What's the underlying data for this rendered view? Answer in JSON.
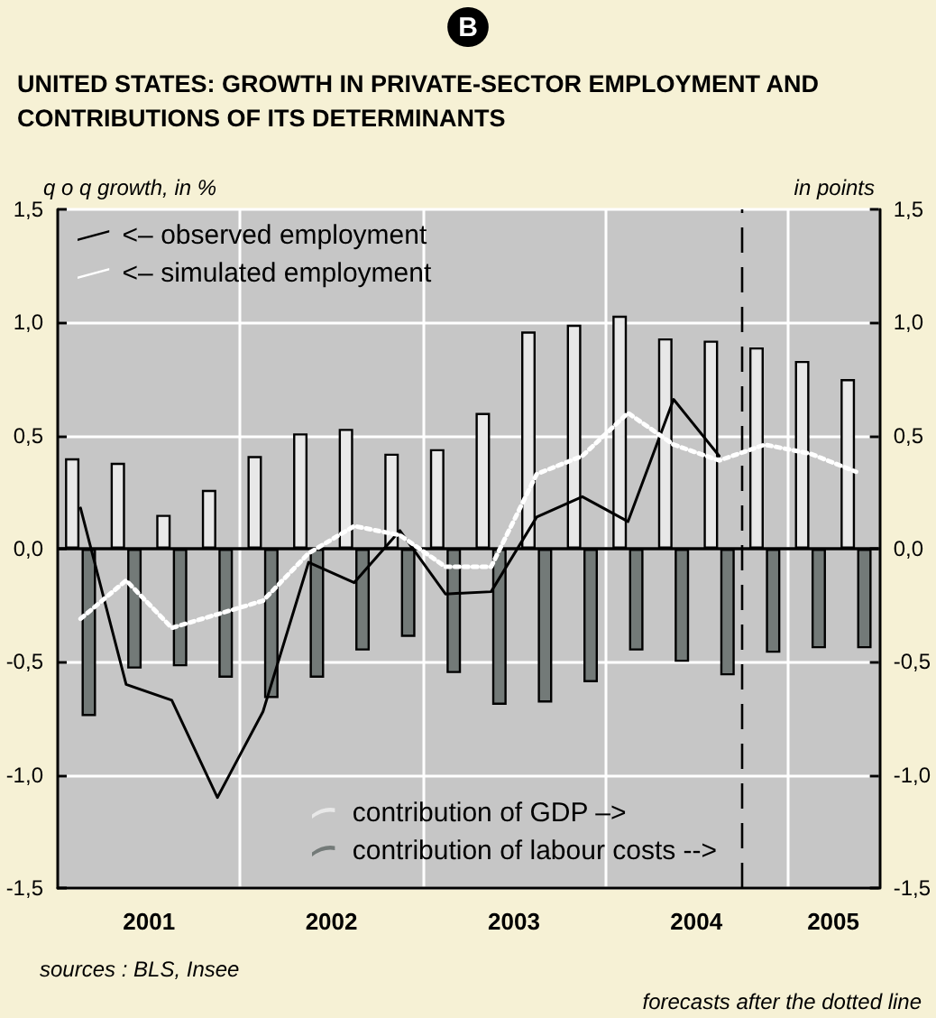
{
  "chart_data": {
    "type": "bar",
    "title": "UNITED STATES: GROWTH IN PRIVATE-SECTOR EMPLOYMENT AND CONTRIBUTIONS OF ITS DETERMINANTS",
    "ylabel": "q o q growth, in %",
    "y2label": "in points",
    "annotations": [
      "B",
      "sources : BLS, Insee",
      "forecasts after the dotted line"
    ],
    "x": [
      2001.125,
      2001.375,
      2001.625,
      2001.875,
      2002.125,
      2002.375,
      2002.625,
      2002.875,
      2003.125,
      2003.375,
      2003.625,
      2003.875,
      2004.125,
      2004.375,
      2004.625,
      2004.875,
      2005.125,
      2005.375
    ],
    "xlim": [
      2001,
      2005.5
    ],
    "xticks": [
      {
        "value": 2001.5,
        "label": "2001"
      },
      {
        "value": 2002,
        "label": null
      },
      {
        "value": 2002.5,
        "label": "2002"
      },
      {
        "value": 2003,
        "label": null
      },
      {
        "value": 2003.5,
        "label": "2003"
      },
      {
        "value": 2004,
        "label": null
      },
      {
        "value": 2004.5,
        "label": "2004"
      },
      {
        "value": 2005,
        "label": null
      },
      {
        "value": 2005.25,
        "label": "2005"
      }
    ],
    "ylim": [
      -1.5,
      1.5
    ],
    "yticks": [
      {
        "value": -1.5,
        "label": "-1,5"
      },
      {
        "value": -1,
        "label": "-1,0"
      },
      {
        "value": -0.5,
        "label": "-0,5"
      },
      {
        "value": 0,
        "label": "0,0"
      },
      {
        "value": 0.5,
        "label": "0,5"
      },
      {
        "value": 1,
        "label": "1,0"
      },
      {
        "value": 1.5,
        "label": "1,5"
      }
    ],
    "y2lim": [
      -1.5,
      1.5
    ],
    "y2ticks": [
      {
        "value": -1.5,
        "label": "-1,5"
      },
      {
        "value": -1,
        "label": "-1,0"
      },
      {
        "value": -0.5,
        "label": "-0,5"
      },
      {
        "value": 0,
        "label": "0,0"
      },
      {
        "value": 0.5,
        "label": "0,5"
      },
      {
        "value": 1,
        "label": "1,0"
      },
      {
        "value": 1.5,
        "label": "1,5"
      }
    ],
    "grid": true,
    "legend": "top left",
    "ref_lines": [
      {
        "axis": "y",
        "value": 0,
        "color": "#000000",
        "line_style": "solid"
      },
      {
        "axis": "x",
        "value": 2004.75,
        "color": "#000000",
        "line_style": "dashed"
      }
    ],
    "series": [
      {
        "name": "<– observed employment",
        "type": "line",
        "color": "#000000",
        "line_style": "solid",
        "marker": "none",
        "values": [
          0.18,
          -0.6,
          -0.67,
          -1.1,
          -0.72,
          -0.06,
          -0.15,
          0.08,
          -0.2,
          -0.19,
          0.14,
          0.23,
          0.12,
          0.66,
          0.41,
          null,
          null,
          null
        ]
      },
      {
        "name": "<– simulated employment",
        "type": "line",
        "color": "#ffffff",
        "line_style": "dotted",
        "marker": "none",
        "values": [
          -0.31,
          -0.14,
          -0.35,
          -0.29,
          -0.23,
          -0.02,
          0.1,
          0.06,
          -0.08,
          -0.08,
          0.33,
          0.41,
          0.6,
          0.46,
          0.39,
          0.46,
          0.42,
          0.34
        ]
      },
      {
        "name": "contribution of GDP –>",
        "axis": "y2",
        "color": "#e8e8e8",
        "values": [
          0.4,
          0.38,
          0.15,
          0.26,
          0.41,
          0.51,
          0.53,
          0.42,
          0.44,
          0.6,
          0.96,
          0.99,
          1.03,
          0.93,
          0.92,
          0.89,
          0.83,
          0.75
        ]
      },
      {
        "name": "contribution of labour costs -->",
        "axis": "y2",
        "color": "#737a78",
        "values": [
          -0.74,
          -0.53,
          -0.52,
          -0.57,
          -0.66,
          -0.57,
          -0.45,
          -0.39,
          -0.55,
          -0.69,
          -0.68,
          -0.59,
          -0.45,
          -0.5,
          -0.56,
          -0.46,
          -0.44,
          -0.44
        ]
      }
    ]
  }
}
